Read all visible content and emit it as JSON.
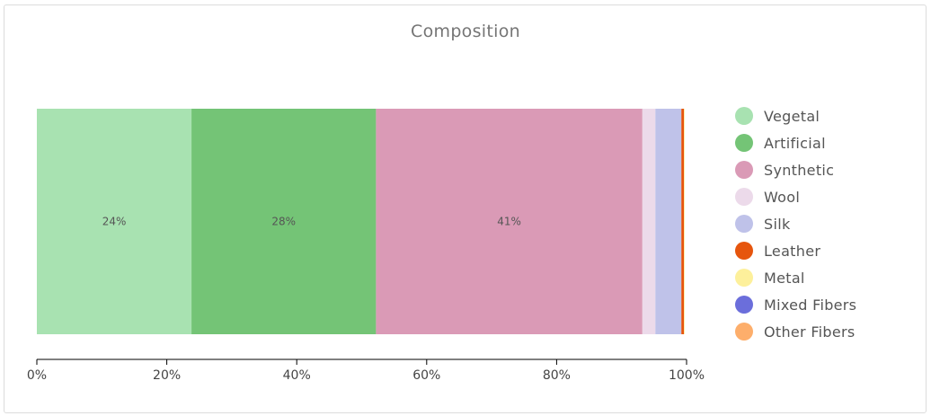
{
  "title": "Composition",
  "chart_data": {
    "type": "bar",
    "orientation": "horizontal",
    "stacked": true,
    "title": "Composition",
    "xlim": [
      0,
      100
    ],
    "x_ticks": [
      "0%",
      "20%",
      "40%",
      "60%",
      "80%",
      "100%"
    ],
    "x_tick_values": [
      0,
      20,
      40,
      60,
      80,
      100
    ],
    "grid": false,
    "legend_position": "right",
    "series": [
      {
        "name": "Vegetal",
        "value": 23.8,
        "label": "24%",
        "color": "#a8e2b1"
      },
      {
        "name": "Artificial",
        "value": 28.4,
        "label": "28%",
        "color": "#74c476"
      },
      {
        "name": "Synthetic",
        "value": 41.0,
        "label": "41%",
        "color": "#da9ab6"
      },
      {
        "name": "Wool",
        "value": 2.0,
        "label": "",
        "color": "#ecdaea"
      },
      {
        "name": "Silk",
        "value": 4.0,
        "label": "",
        "color": "#bfc2e9"
      },
      {
        "name": "Leather",
        "value": 0.4,
        "label": "",
        "color": "#e6550d"
      },
      {
        "name": "Metal",
        "value": 0.1,
        "label": "",
        "color": "#fdf09b"
      },
      {
        "name": "Mixed Fibers",
        "value": 0.0,
        "label": "",
        "color": "#6b6edb"
      },
      {
        "name": "Other Fibers",
        "value": 0.0,
        "label": "",
        "color": "#fdae6b"
      }
    ]
  }
}
